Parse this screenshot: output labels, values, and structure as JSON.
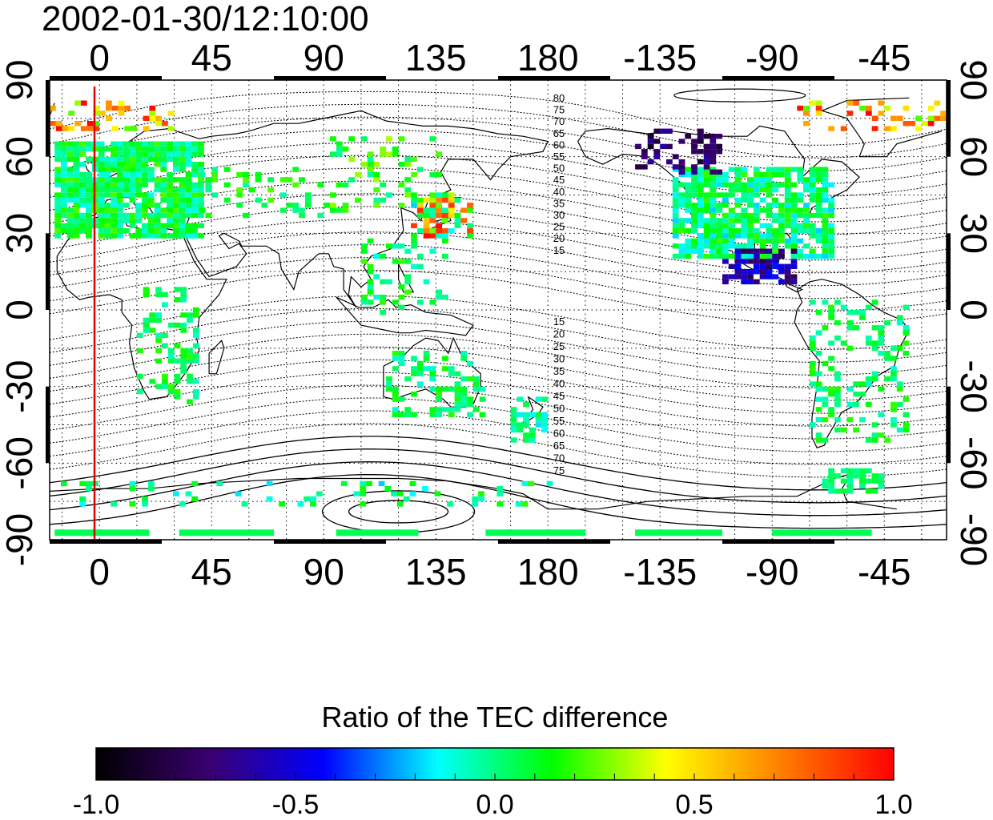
{
  "title": "2002-01-30/12:10:00",
  "map": {
    "projection": "cylindrical equidistant",
    "lon_range": [
      -20,
      340
    ],
    "lat_range": [
      -90,
      90
    ],
    "top_lon_ticks": [
      "0",
      "45",
      "90",
      "135",
      "180",
      "-135",
      "-90",
      "-45"
    ],
    "bottom_lon_ticks": [
      "0",
      "45",
      "90",
      "135",
      "180",
      "-135",
      "-90",
      "-45"
    ],
    "left_lat_ticks": [
      "90",
      "60",
      "30",
      "0",
      "-30",
      "-60",
      "-90"
    ],
    "right_lat_ticks": [
      "90",
      "60",
      "30",
      "0",
      "-30",
      "-60",
      "-90"
    ],
    "grid": "dotted, every 15 degrees",
    "marker_line": {
      "lon": -2,
      "color": "#e00000"
    },
    "contour_labels_north": [
      "80",
      "75",
      "70",
      "65",
      "60",
      "55",
      "50",
      "45",
      "40",
      "35",
      "30",
      "25",
      "20",
      "15"
    ],
    "contour_labels_south": [
      "15",
      "20",
      "25",
      "30",
      "35",
      "40",
      "45",
      "50",
      "55",
      "60",
      "65",
      "70",
      "75"
    ]
  },
  "colorbar": {
    "label": "Ratio of the TEC difference",
    "range": [
      -1.0,
      1.0
    ],
    "ticks": [
      "-1.0",
      "-0.5",
      "0.0",
      "0.5",
      "1.0"
    ],
    "colormap": [
      "#000000",
      "#3a0070",
      "#0000ff",
      "#00ffff",
      "#00ff00",
      "#ffff00",
      "#ff8000",
      "#ff0000"
    ]
  }
}
